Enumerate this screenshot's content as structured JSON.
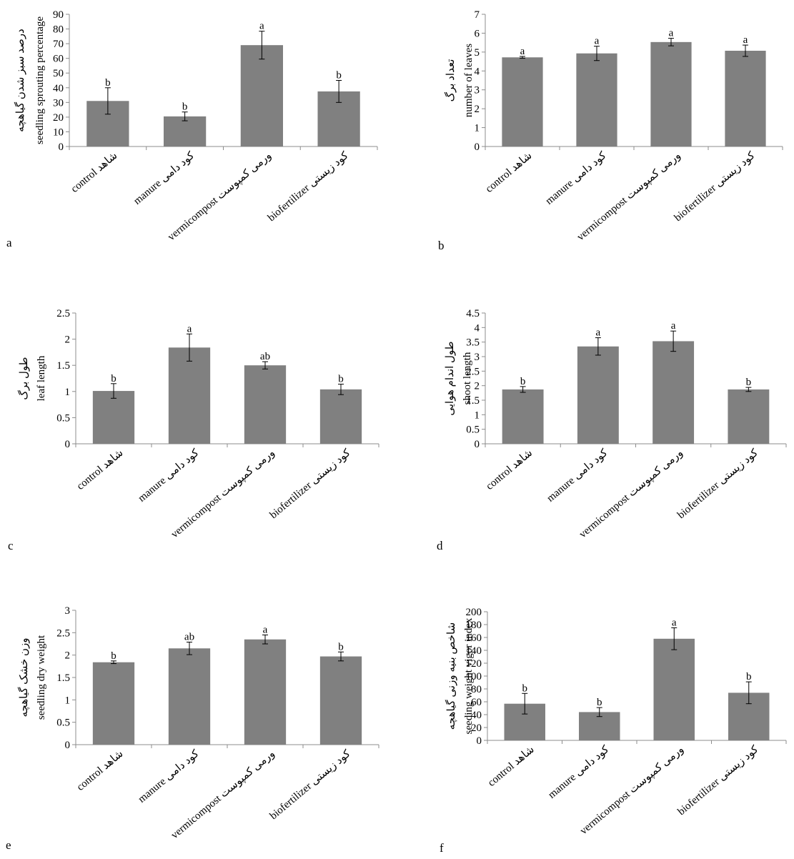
{
  "figure": {
    "bar_color": "#808080",
    "axis_color": "#8c8c8c",
    "errorbar_color": "#000000"
  },
  "chart_data": [
    {
      "panel": "a",
      "type": "bar",
      "categories": [
        "control شاهد",
        "manure کود دامی",
        "vermicompost ورمی کمپوست",
        "biofertilizer کود زیستی"
      ],
      "values": [
        31,
        20.5,
        69,
        37.5
      ],
      "errors": [
        9,
        3,
        9.5,
        7.5
      ],
      "significance": [
        "b",
        "b",
        "a",
        "b"
      ],
      "ylabel": "seedling sprouting percentage",
      "ylabel_fa": "درصد سبز شدن گیاهچه",
      "ylim": [
        0,
        90
      ],
      "yticks": [
        0,
        10,
        20,
        30,
        40,
        50,
        60,
        70,
        80,
        90
      ],
      "ytick_labels": [
        "0",
        "10",
        "20",
        "30",
        "40",
        "50",
        "60",
        "70",
        "80",
        "90"
      ]
    },
    {
      "panel": "b",
      "type": "bar",
      "categories": [
        "control شاهد",
        "manure کود دامی",
        "vermicompost ورمی کمپوست",
        "biofertilizer کود زیستی"
      ],
      "values": [
        4.72,
        4.93,
        5.53,
        5.07
      ],
      "errors": [
        0.05,
        0.38,
        0.2,
        0.3
      ],
      "significance": [
        "a",
        "a",
        "a",
        "a"
      ],
      "ylabel": "number of leaves",
      "ylabel_fa": "تعداد برگ",
      "ylim": [
        0,
        7
      ],
      "yticks": [
        0,
        1,
        2,
        3,
        4,
        5,
        6,
        7
      ],
      "ytick_labels": [
        "0",
        "1",
        "2",
        "3",
        "4",
        "5",
        "6",
        "7"
      ]
    },
    {
      "panel": "c",
      "type": "bar",
      "categories": [
        "control شاهد",
        "manure کود دامی",
        "vermicompost ورمی کمپوست",
        "biofertilizer کود زیستی"
      ],
      "values": [
        1.01,
        1.84,
        1.5,
        1.04
      ],
      "errors": [
        0.14,
        0.26,
        0.07,
        0.1
      ],
      "significance": [
        "b",
        "a",
        "ab",
        "b"
      ],
      "ylabel": "leaf length",
      "ylabel_fa": "طول برگ",
      "ylim": [
        0,
        2.5
      ],
      "yticks": [
        0,
        0.5,
        1,
        1.5,
        2,
        2.5
      ],
      "ytick_labels": [
        "0",
        "0.5",
        "1",
        "1.5",
        "2",
        "2.5"
      ]
    },
    {
      "panel": "d",
      "type": "bar",
      "categories": [
        "control شاهد",
        "manure کود دامی",
        "vermicompost ورمی کمپوست",
        "biofertilizer کود زیستی"
      ],
      "values": [
        1.87,
        3.35,
        3.53,
        1.87
      ],
      "errors": [
        0.1,
        0.3,
        0.35,
        0.07
      ],
      "significance": [
        "b",
        "a",
        "a",
        "b"
      ],
      "ylabel": "shoot length",
      "ylabel_fa": "طول اندام هوایی",
      "ylim": [
        0,
        4.5
      ],
      "yticks": [
        0,
        0.5,
        1,
        1.5,
        2,
        2.5,
        3,
        3.5,
        4,
        4.5
      ],
      "ytick_labels": [
        "0",
        "0.5",
        "1",
        "1.5",
        "2",
        "2.5",
        "3",
        "3.5",
        "4",
        "4.5"
      ]
    },
    {
      "panel": "e",
      "type": "bar",
      "categories": [
        "control شاهد",
        "manure کود دامی",
        "vermicompost ورمی کمپوست",
        "biofertilizer کود زیستی"
      ],
      "values": [
        1.84,
        2.15,
        2.35,
        1.97
      ],
      "errors": [
        0.03,
        0.14,
        0.1,
        0.1
      ],
      "significance": [
        "b",
        "ab",
        "a",
        "b"
      ],
      "ylabel": "seedling dry weight",
      "ylabel_fa": "وزن خشک گیاهچه",
      "ylim": [
        0,
        3
      ],
      "yticks": [
        0,
        0.5,
        1,
        1.5,
        2,
        2.5,
        3
      ],
      "ytick_labels": [
        "0",
        "0.5",
        "1",
        "1.5",
        "2",
        "2.5",
        "3"
      ]
    },
    {
      "panel": "f",
      "type": "bar",
      "categories": [
        "control شاهد",
        "manure کود دامی",
        "vermicompost ورمی کمپوست",
        "biofertilizer کود زیستی"
      ],
      "values": [
        57,
        44,
        158,
        74
      ],
      "errors": [
        16,
        7,
        17,
        17
      ],
      "significance": [
        "b",
        "b",
        "a",
        "b"
      ],
      "ylabel": "seeding weight vigor index",
      "ylabel_fa": "شاخص بنیه وزنی گیاهچه",
      "ylim": [
        0,
        200
      ],
      "yticks": [
        0,
        20,
        40,
        60,
        80,
        100,
        120,
        140,
        160,
        180,
        200
      ],
      "ytick_labels": [
        "0",
        "20",
        "40",
        "60",
        "80",
        "100",
        "120",
        "140",
        "160",
        "180",
        "200"
      ]
    }
  ]
}
